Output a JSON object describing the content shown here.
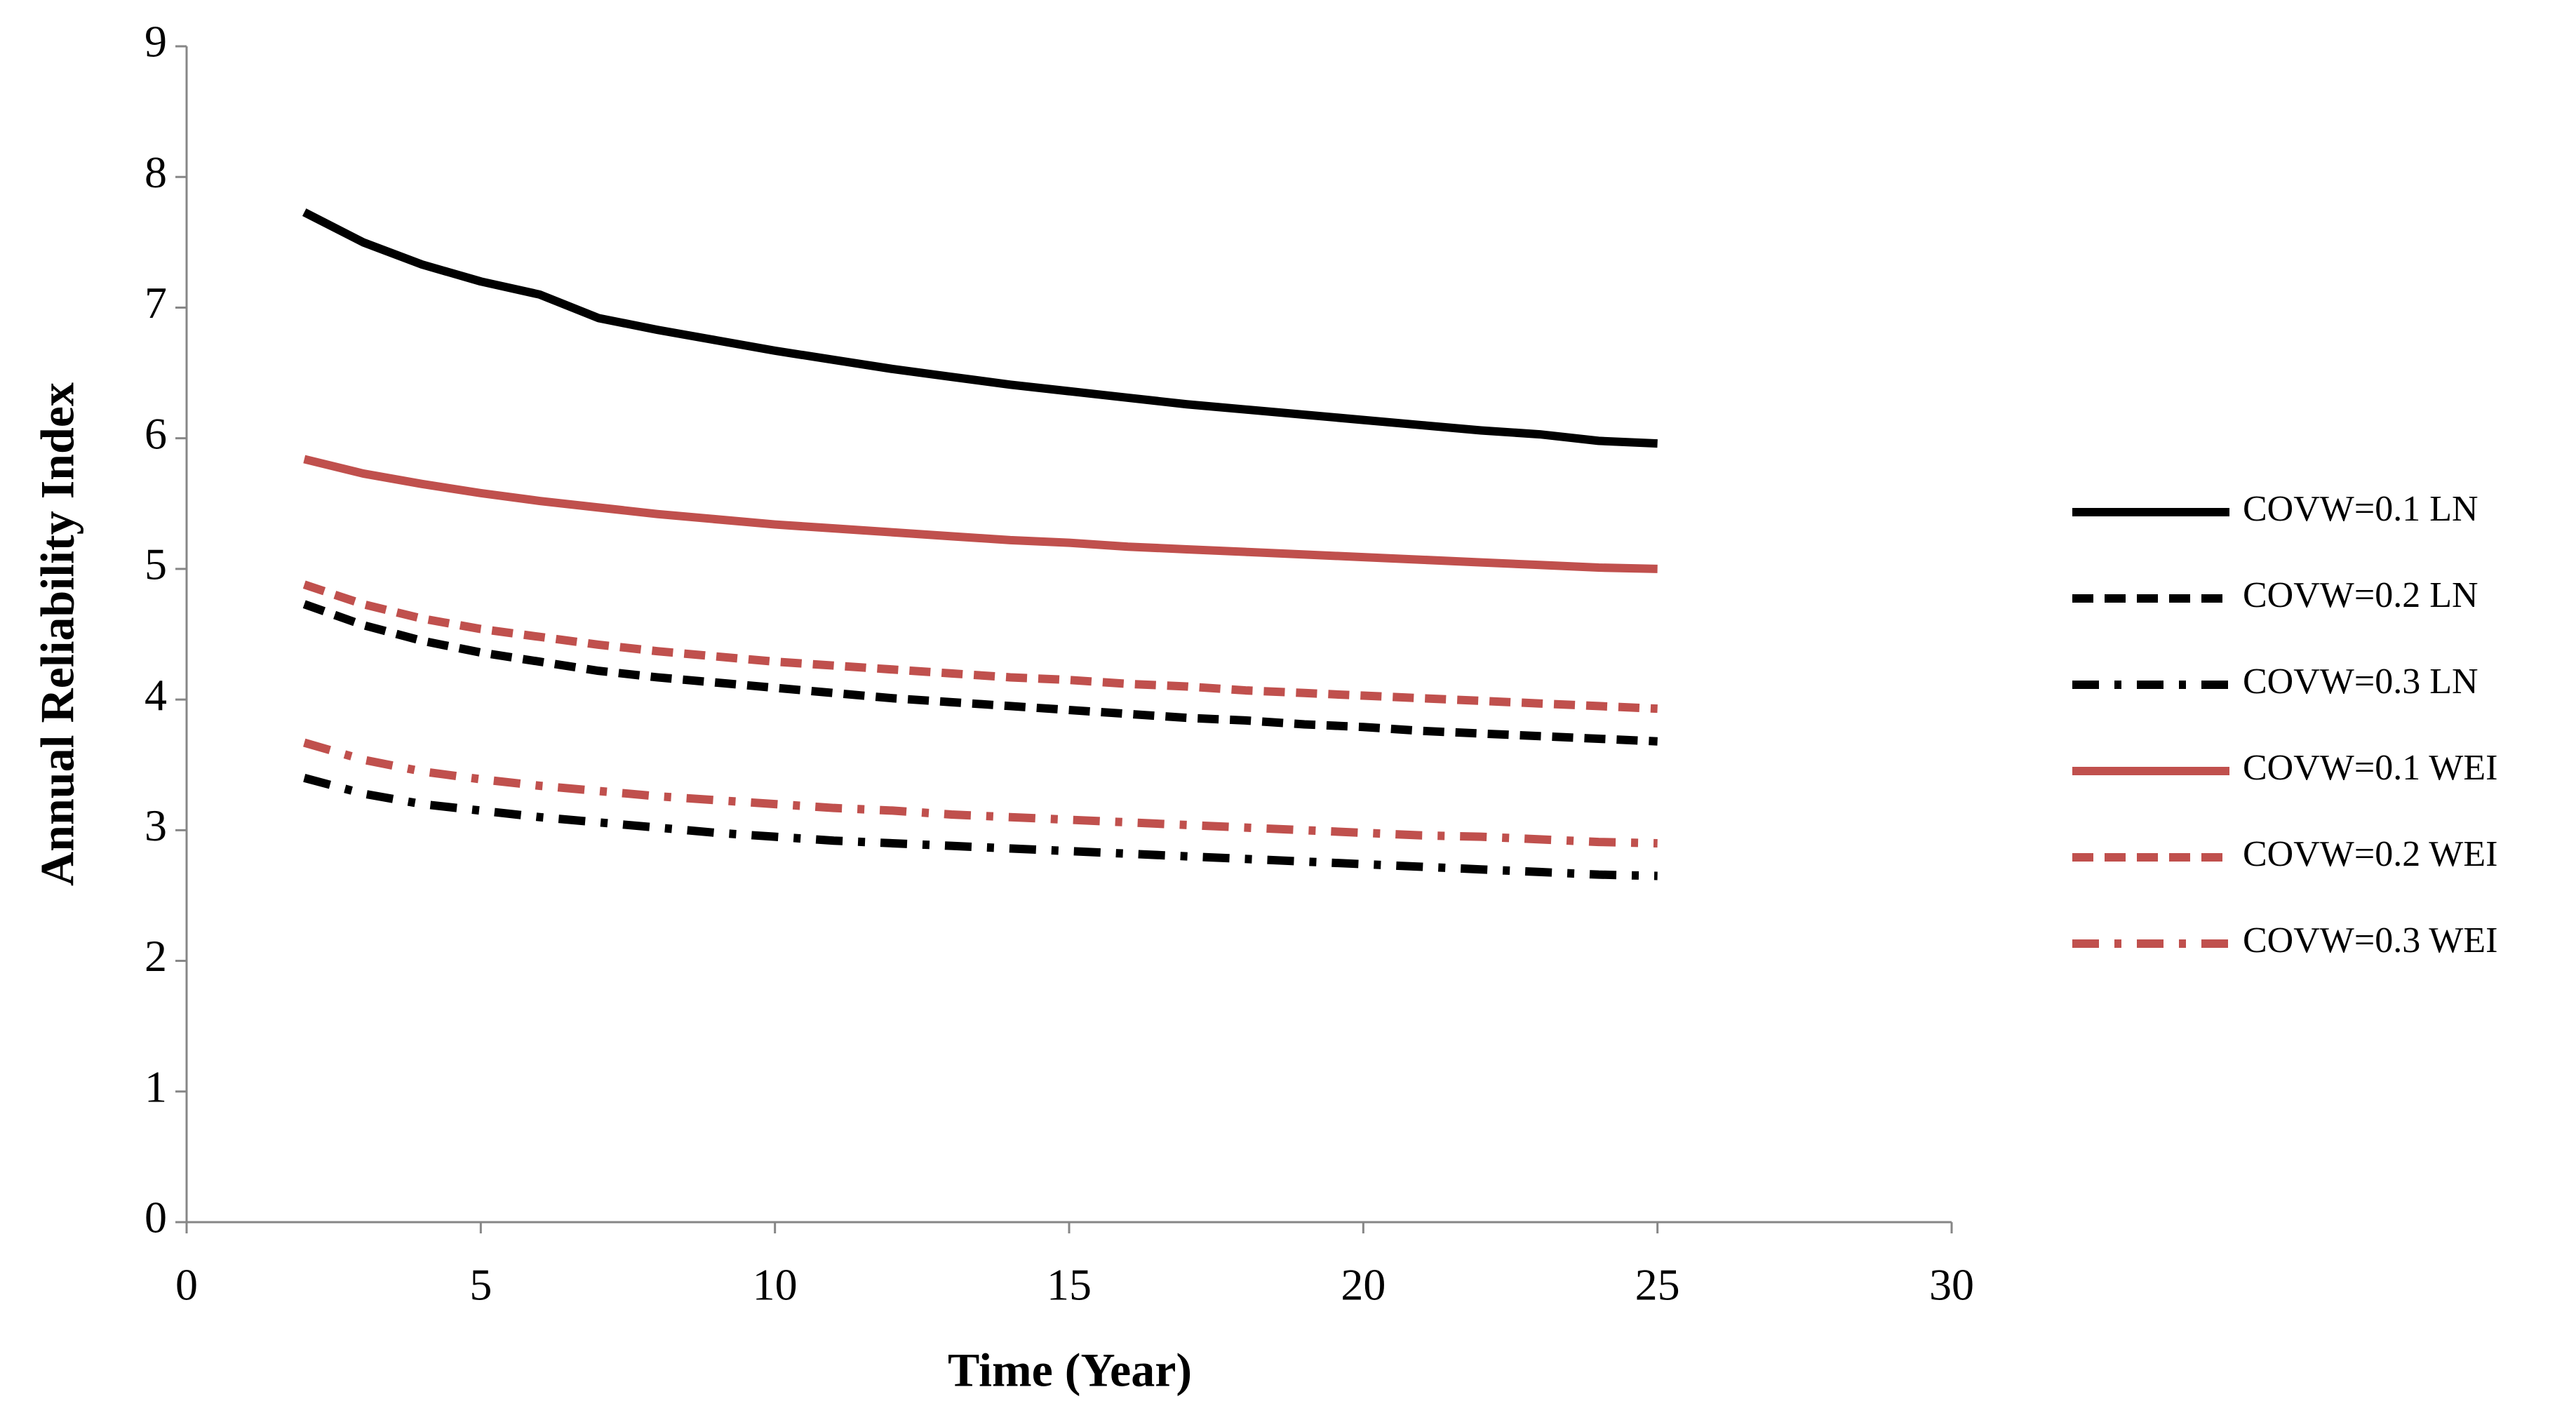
{
  "chart_data": {
    "type": "line",
    "x_label": "Time (Year)",
    "y_label": "Annual Reliability Index",
    "x": [
      2,
      3,
      4,
      5,
      6,
      7,
      8,
      9,
      10,
      11,
      12,
      13,
      14,
      15,
      16,
      17,
      18,
      19,
      20,
      21,
      22,
      23,
      24,
      25
    ],
    "xlim": [
      0,
      30
    ],
    "xticks": [
      0,
      5,
      10,
      15,
      20,
      25,
      30
    ],
    "ylim": [
      0,
      9
    ],
    "yticks": [
      0,
      1,
      2,
      3,
      4,
      5,
      6,
      7,
      8,
      9
    ],
    "grid": false,
    "legend": "right",
    "series": [
      {
        "name": "COVW=0.1 LN",
        "color": "#000000",
        "dash": "solid",
        "values": [
          7.73,
          7.5,
          7.33,
          7.2,
          7.1,
          6.92,
          6.83,
          6.75,
          6.67,
          6.6,
          6.53,
          6.47,
          6.41,
          6.36,
          6.31,
          6.26,
          6.22,
          6.18,
          6.14,
          6.1,
          6.06,
          6.03,
          5.98,
          5.96
        ]
      },
      {
        "name": "COVW=0.2 LN",
        "color": "#000000",
        "dash": "dashed",
        "values": [
          4.73,
          4.57,
          4.45,
          4.36,
          4.29,
          4.22,
          4.17,
          4.13,
          4.09,
          4.05,
          4.01,
          3.98,
          3.95,
          3.92,
          3.89,
          3.86,
          3.84,
          3.81,
          3.79,
          3.76,
          3.74,
          3.72,
          3.7,
          3.68
        ]
      },
      {
        "name": "COVW=0.3 LN",
        "color": "#000000",
        "dash": "dashdot",
        "values": [
          3.4,
          3.28,
          3.2,
          3.15,
          3.1,
          3.06,
          3.02,
          2.98,
          2.95,
          2.92,
          2.9,
          2.88,
          2.86,
          2.84,
          2.82,
          2.8,
          2.78,
          2.76,
          2.74,
          2.72,
          2.7,
          2.68,
          2.66,
          2.65
        ]
      },
      {
        "name": "COVW=0.1 WEI",
        "color": "#c0504d",
        "dash": "solid",
        "values": [
          5.84,
          5.73,
          5.65,
          5.58,
          5.52,
          5.47,
          5.42,
          5.38,
          5.34,
          5.31,
          5.28,
          5.25,
          5.22,
          5.2,
          5.17,
          5.15,
          5.13,
          5.11,
          5.09,
          5.07,
          5.05,
          5.03,
          5.01,
          5.0
        ]
      },
      {
        "name": "COVW=0.2 WEI",
        "color": "#c0504d",
        "dash": "dashed",
        "values": [
          4.88,
          4.73,
          4.62,
          4.54,
          4.48,
          4.42,
          4.37,
          4.33,
          4.29,
          4.26,
          4.23,
          4.2,
          4.17,
          4.15,
          4.12,
          4.1,
          4.07,
          4.05,
          4.03,
          4.01,
          3.99,
          3.97,
          3.95,
          3.93
        ]
      },
      {
        "name": "COVW=0.3 WEI",
        "color": "#c0504d",
        "dash": "dashdot",
        "values": [
          3.67,
          3.54,
          3.45,
          3.39,
          3.34,
          3.3,
          3.26,
          3.23,
          3.2,
          3.17,
          3.15,
          3.12,
          3.1,
          3.08,
          3.06,
          3.04,
          3.02,
          3.0,
          2.98,
          2.96,
          2.95,
          2.93,
          2.91,
          2.9
        ]
      }
    ]
  }
}
